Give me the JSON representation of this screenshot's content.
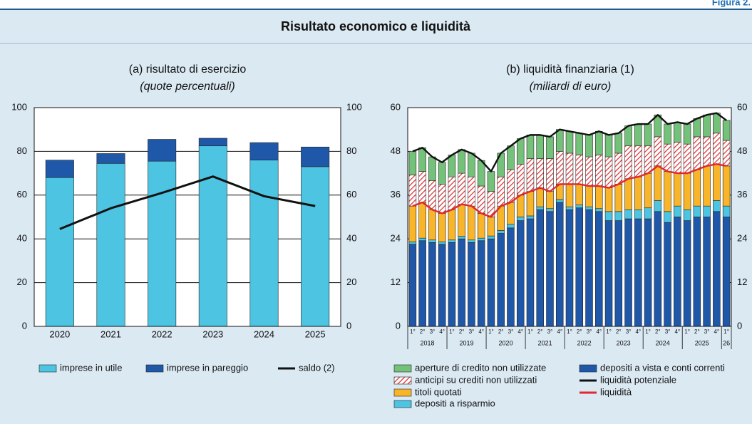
{
  "header": {
    "label": "Figura 2.",
    "title": "Risultato economico e liquidità"
  },
  "chart_data": [
    {
      "type": "bar",
      "title": "(a) risultato di esercizio",
      "subtitle": "(quote percentuali)",
      "categories": [
        "2020",
        "2021",
        "2022",
        "2023",
        "2024",
        "2025"
      ],
      "series": [
        {
          "name": "imprese in utile",
          "color": "#4cc4e2",
          "values": [
            68,
            74.5,
            75.5,
            82.5,
            76,
            73
          ]
        },
        {
          "name": "imprese in pareggio",
          "color": "#1f58a8",
          "values": [
            8,
            4.5,
            10,
            3.5,
            8,
            9
          ]
        },
        {
          "name": "saldo (2)",
          "type": "line",
          "color": "#111111",
          "values": [
            44.5,
            54,
            61,
            68.5,
            59.5,
            55
          ]
        }
      ],
      "ylim": [
        0,
        100
      ],
      "yticks": [
        0,
        20,
        40,
        60,
        80,
        100
      ],
      "y2lim": [
        0,
        100
      ],
      "y2ticks": [
        0,
        20,
        40,
        60,
        80,
        100
      ],
      "grid": true
    },
    {
      "type": "bar",
      "title": "(b) liquidità finanziaria (1)",
      "subtitle": "(miliardi di euro)",
      "categories": [
        "1°",
        "2°",
        "3°",
        "4°",
        "1°",
        "2°",
        "3°",
        "4°",
        "1°",
        "2°",
        "3°",
        "4°",
        "1°",
        "2°",
        "3°",
        "4°",
        "1°",
        "2°",
        "3°",
        "4°",
        "1°",
        "2°",
        "3°",
        "4°",
        "1°",
        "2°",
        "3°",
        "4°",
        "1°",
        "2°",
        "3°",
        "4°",
        "1°"
      ],
      "year_labels": [
        "2018",
        "2019",
        "2020",
        "2021",
        "2022",
        "2023",
        "2024",
        "2025",
        "26"
      ],
      "series": [
        {
          "name": "depositi a vista e conti correnti",
          "color": "#1f58a8",
          "values": [
            22.5,
            23.5,
            23,
            22.5,
            23,
            24,
            23,
            23.5,
            24,
            25.5,
            27,
            29,
            29.5,
            32,
            31.5,
            34,
            32,
            32.5,
            32,
            31.5,
            29,
            29,
            29.5,
            29.5,
            29.5,
            31.5,
            28.5,
            30,
            29,
            30,
            30,
            31.5,
            30
          ]
        },
        {
          "name": "depositi a risparmio",
          "color": "#4cc4e2",
          "values": [
            0.7,
            0.7,
            0.7,
            0.7,
            0.7,
            0.7,
            0.7,
            0.7,
            0.8,
            0.8,
            1,
            1,
            0.8,
            0.8,
            0.8,
            0.8,
            0.8,
            0.8,
            0.8,
            0.8,
            2.5,
            2.5,
            2.5,
            2.5,
            3,
            3,
            3,
            3,
            3,
            3,
            3,
            3,
            3
          ]
        },
        {
          "name": "titoli quotati",
          "color": "#f8b52a",
          "values": [
            9.8,
            9.8,
            8.3,
            7.8,
            8.3,
            8.8,
            9.3,
            6.8,
            5.2,
            6.7,
            6,
            6,
            6.7,
            5.2,
            4.7,
            4.2,
            6.2,
            5.7,
            5.7,
            6.2,
            6.5,
            7.5,
            8.5,
            9,
            9.5,
            9.5,
            11,
            9,
            10,
            10,
            11,
            10,
            11
          ]
        },
        {
          "name": "anticipi su crediti non utilizzati",
          "color": "#e0282e",
          "hatch": true,
          "values": [
            8.5,
            8.5,
            8,
            8,
            9,
            8.5,
            8,
            7.5,
            7,
            8,
            9,
            8.5,
            9,
            8,
            9,
            9,
            8.5,
            8,
            8,
            8.5,
            8.5,
            8.5,
            9,
            8.5,
            7.5,
            8,
            7.5,
            8.5,
            8,
            9,
            8,
            8.5,
            7
          ]
        },
        {
          "name": "aperture di credito non utilizzate",
          "color": "#74c27a",
          "values": [
            6.5,
            6.5,
            6.5,
            6,
            6,
            6.5,
            6.5,
            7,
            5.5,
            6.5,
            6.5,
            7,
            6.5,
            6.5,
            6,
            6,
            6,
            6,
            6,
            6.5,
            6,
            5.5,
            5.5,
            6,
            6,
            6,
            5.5,
            5.5,
            5.5,
            5,
            6,
            5.5,
            5.5
          ]
        },
        {
          "name": "liquidità potenziale",
          "type": "line",
          "color": "#111111",
          "values": [
            48,
            49,
            46.5,
            45,
            47,
            48.5,
            47.5,
            45.5,
            42.5,
            47.5,
            49.5,
            51.5,
            52.5,
            52.5,
            52,
            54,
            53.5,
            53,
            52.5,
            53.5,
            52.5,
            53,
            55,
            55.5,
            55.5,
            58,
            55.5,
            56,
            55.5,
            57,
            58,
            58.5,
            56.5
          ]
        },
        {
          "name": "liquidità",
          "type": "line",
          "color": "#e0282e",
          "values": [
            33,
            34,
            32,
            31,
            32,
            33.5,
            33,
            31,
            30,
            33,
            34,
            36,
            37,
            38,
            37,
            39,
            39,
            39,
            38.5,
            38.5,
            38,
            39,
            40.5,
            41,
            42,
            44,
            42.5,
            42,
            42,
            43,
            44,
            44.5,
            44
          ]
        }
      ],
      "ylim": [
        0,
        60
      ],
      "yticks": [
        0,
        12,
        24,
        36,
        48,
        60
      ],
      "y2lim": [
        0,
        60
      ],
      "y2ticks": [
        0,
        12,
        24,
        36,
        48,
        60
      ],
      "grid": false
    }
  ]
}
